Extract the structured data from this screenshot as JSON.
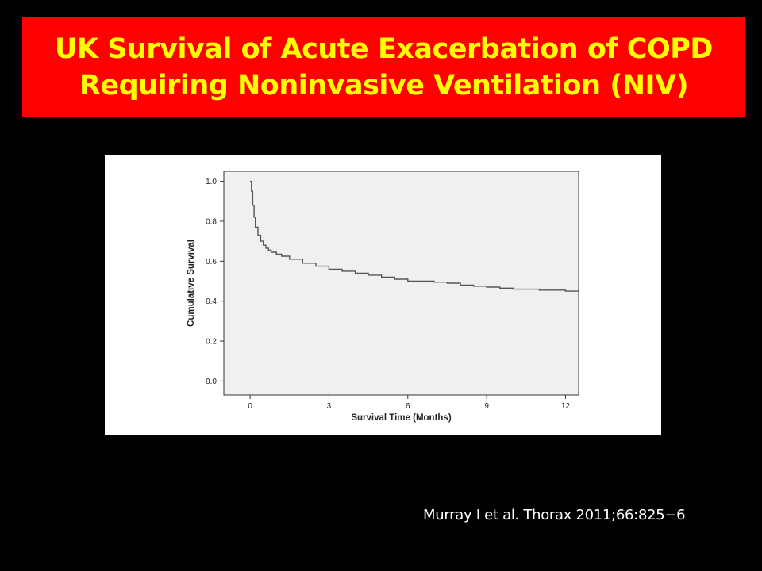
{
  "slide": {
    "title_lines": [
      "UK Survival of Acute Exacerbation of COPD",
      "Requiring Noninvasive Ventilation (NIV)"
    ],
    "citation": "Murray I et al. Thorax 2011;66:825−6"
  },
  "colors": {
    "background": "#000000",
    "title_box": "#ff0000",
    "title_text": "#ffff00",
    "plot_area": "#f0f0f0",
    "curve": "#555555"
  },
  "chart_data": {
    "type": "line",
    "title": "",
    "xlabel": "Survival Time (Months)",
    "ylabel": "Cumulative Survival",
    "xlim": [
      -1,
      12.5
    ],
    "ylim": [
      -0.07,
      1.05
    ],
    "xticks": [
      0,
      3,
      6,
      9,
      12
    ],
    "xtick_labels": [
      "0",
      "3",
      "6",
      "9",
      "12"
    ],
    "yticks": [
      0.0,
      0.2,
      0.4,
      0.6,
      0.8,
      1.0
    ],
    "ytick_labels": [
      "0.0",
      "0.2",
      "0.4",
      "0.6",
      "0.8",
      "1.0"
    ],
    "grid": false,
    "legend": "none",
    "series": [
      {
        "x": [
          0,
          0.05,
          0.1,
          0.15,
          0.2,
          0.3,
          0.4,
          0.5,
          0.6,
          0.7,
          0.8,
          1.0,
          1.2,
          1.5,
          2.0,
          2.5,
          3.0,
          3.5,
          4.0,
          4.5,
          5.0,
          5.5,
          6.0,
          6.5,
          7.0,
          7.5,
          8.0,
          8.5,
          9.0,
          9.5,
          10.0,
          10.5,
          11.0,
          11.5,
          12.0,
          12.5
        ],
        "y": [
          1.0,
          0.95,
          0.88,
          0.82,
          0.77,
          0.73,
          0.7,
          0.68,
          0.665,
          0.655,
          0.645,
          0.635,
          0.625,
          0.61,
          0.59,
          0.575,
          0.56,
          0.55,
          0.54,
          0.53,
          0.52,
          0.51,
          0.5,
          0.5,
          0.495,
          0.49,
          0.48,
          0.475,
          0.47,
          0.465,
          0.46,
          0.46,
          0.455,
          0.455,
          0.45,
          0.445
        ]
      }
    ]
  }
}
